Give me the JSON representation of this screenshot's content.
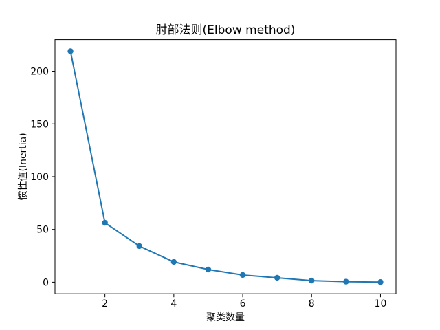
{
  "chart_data": {
    "type": "line",
    "title": "肘部法则(Elbow method)",
    "xlabel": "聚类数量",
    "ylabel": "惯性值(Inertia)",
    "x": [
      1,
      2,
      3,
      4,
      5,
      6,
      7,
      8,
      9,
      10
    ],
    "series": [
      {
        "name": "inertia",
        "values": [
          219.0,
          56.3,
          34.2,
          19.2,
          12.0,
          6.8,
          4.2,
          1.5,
          0.5,
          0.1
        ]
      }
    ],
    "xticks": [
      2,
      4,
      6,
      8,
      10
    ],
    "yticks": [
      0,
      50,
      100,
      150,
      200
    ],
    "xlim": [
      0.55,
      10.45
    ],
    "ylim": [
      -10.95,
      229.95
    ],
    "grid": false,
    "legend": "none",
    "line_color": "#1f77b4",
    "marker": "o",
    "marker_color": "#1f77b4",
    "axes_color": "#000000",
    "background": "#ffffff"
  }
}
